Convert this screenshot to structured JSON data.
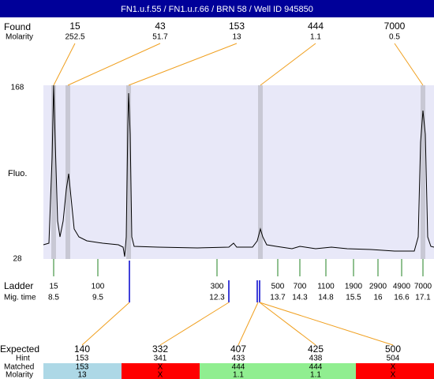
{
  "header": {
    "title": "FN1.u.f.55 / FN1.u.r.66 / BRN 58 / Well ID 945850"
  },
  "found": {
    "label": "Found",
    "sub_label": "Molarity",
    "peaks": [
      {
        "size": 15,
        "molarity": 252.5
      },
      {
        "size": 43,
        "molarity": 51.7
      },
      {
        "size": 153,
        "molarity": 13
      },
      {
        "size": 444,
        "molarity": 1.1
      },
      {
        "size": 7000,
        "molarity": 0.5
      }
    ]
  },
  "plot": {
    "y_label": "Fluo.",
    "y_max": 168,
    "y_min": 28
  },
  "ladder": {
    "label": "Ladder",
    "sub_label": "Mig. time",
    "sizes": [
      15,
      100,
      300,
      500,
      700,
      1100,
      1900,
      2900,
      4900,
      7000
    ],
    "times": [
      8.5,
      9.5,
      12.3,
      13.7,
      14.3,
      14.8,
      15.5,
      16,
      16.6,
      17.1
    ]
  },
  "expected": {
    "label": "Expected",
    "hint_label": "Hint",
    "matched_label": "Matched",
    "molarity_label": "Molarity",
    "columns": [
      {
        "expected": 140,
        "hint": 153,
        "matched": "153",
        "molarity": "13"
      },
      {
        "expected": 332,
        "hint": 341,
        "matched": "X",
        "molarity": "X"
      },
      {
        "expected": 407,
        "hint": 433,
        "matched": "444",
        "molarity": "1.1"
      },
      {
        "expected": 425,
        "hint": 438,
        "matched": "444",
        "molarity": "1.1"
      },
      {
        "expected": 500,
        "hint": 504,
        "matched": "X",
        "molarity": "X"
      }
    ]
  }
}
